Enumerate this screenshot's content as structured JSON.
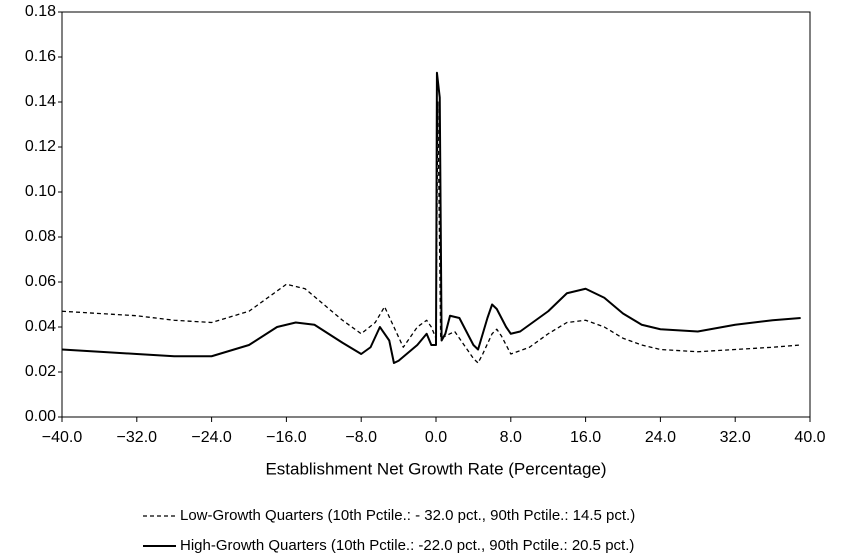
{
  "chart_data": {
    "type": "line",
    "x_label": "Establishment Net Growth Rate (Percentage)",
    "xlim": [
      -40,
      40
    ],
    "ylim": [
      0,
      0.18
    ],
    "xticks": [
      {
        "value": -40,
        "label": "−40.0"
      },
      {
        "value": -32,
        "label": "−32.0"
      },
      {
        "value": -24,
        "label": "−24.0"
      },
      {
        "value": -16,
        "label": "−16.0"
      },
      {
        "value": -8,
        "label": "−8.0"
      },
      {
        "value": 0,
        "label": "0.0"
      },
      {
        "value": 8,
        "label": "8.0"
      },
      {
        "value": 16,
        "label": "16.0"
      },
      {
        "value": 24,
        "label": "24.0"
      },
      {
        "value": 32,
        "label": "32.0"
      },
      {
        "value": 40,
        "label": "40.0"
      }
    ],
    "yticks": [
      {
        "value": 0,
        "label": "0.00"
      },
      {
        "value": 0.02,
        "label": "0.02"
      },
      {
        "value": 0.04,
        "label": "0.04"
      },
      {
        "value": 0.06,
        "label": "0.06"
      },
      {
        "value": 0.08,
        "label": "0.08"
      },
      {
        "value": 0.1,
        "label": "0.10"
      },
      {
        "value": 0.12,
        "label": "0.12"
      },
      {
        "value": 0.14,
        "label": "0.14"
      },
      {
        "value": 0.16,
        "label": "0.16"
      },
      {
        "value": 0.18,
        "label": "0.18"
      }
    ],
    "series": [
      {
        "name": "Low-Growth Quarters (10th Pctile.: - 32.0 pct., 90th Pctile.: 14.5 pct.)",
        "color": "#000000",
        "style": "dashed",
        "x": [
          -40,
          -36,
          -32,
          -28,
          -24,
          -20,
          -16,
          -14,
          -12,
          -10,
          -8,
          -6.5,
          -5.5,
          -4.5,
          -3.5,
          -2,
          -1,
          -0.5,
          0,
          0.2,
          0.5,
          1,
          2,
          3,
          4,
          4.5,
          5,
          6,
          6.5,
          7,
          8,
          10,
          12,
          14,
          16,
          18,
          20,
          22,
          24,
          28,
          32,
          36,
          39
        ],
        "values": [
          0.047,
          0.046,
          0.045,
          0.043,
          0.042,
          0.047,
          0.059,
          0.057,
          0.05,
          0.043,
          0.037,
          0.042,
          0.049,
          0.04,
          0.031,
          0.04,
          0.043,
          0.04,
          0.035,
          0.14,
          0.035,
          0.036,
          0.038,
          0.032,
          0.026,
          0.024,
          0.028,
          0.037,
          0.039,
          0.036,
          0.028,
          0.031,
          0.037,
          0.042,
          0.043,
          0.04,
          0.035,
          0.032,
          0.03,
          0.029,
          0.03,
          0.031,
          0.032
        ]
      },
      {
        "name": "High-Growth Quarters (10th Pctile.: -22.0 pct., 90th Pctile.: 20.5 pct.)",
        "color": "#000000",
        "style": "solid",
        "x": [
          -40,
          -36,
          -32,
          -28,
          -24,
          -20,
          -17,
          -15,
          -13,
          -10,
          -8,
          -7,
          -6,
          -5,
          -4.5,
          -4,
          -2,
          -1,
          -0.5,
          0,
          0.1,
          0.4,
          0.6,
          1,
          1.5,
          2.5,
          3.5,
          4,
          4.5,
          5.5,
          6,
          6.5,
          7.5,
          8,
          9,
          12,
          14,
          16,
          18,
          20,
          22,
          24,
          28,
          32,
          36,
          39
        ],
        "values": [
          0.03,
          0.029,
          0.028,
          0.027,
          0.027,
          0.032,
          0.04,
          0.042,
          0.041,
          0.033,
          0.028,
          0.031,
          0.04,
          0.034,
          0.024,
          0.025,
          0.032,
          0.037,
          0.032,
          0.032,
          0.153,
          0.142,
          0.034,
          0.037,
          0.045,
          0.044,
          0.036,
          0.032,
          0.03,
          0.044,
          0.05,
          0.048,
          0.04,
          0.037,
          0.038,
          0.047,
          0.055,
          0.057,
          0.053,
          0.046,
          0.041,
          0.039,
          0.038,
          0.041,
          0.043,
          0.044
        ]
      }
    ]
  }
}
